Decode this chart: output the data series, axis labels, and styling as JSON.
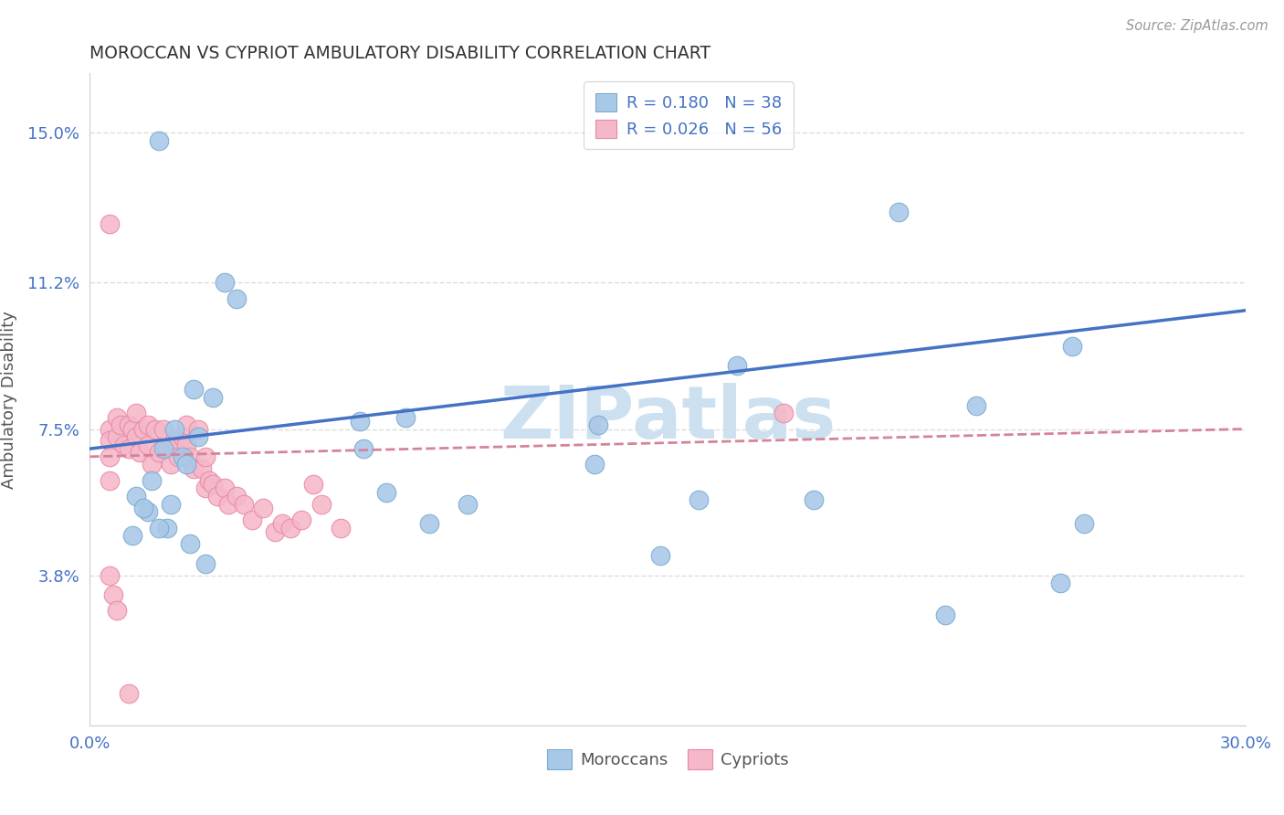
{
  "title": "MOROCCAN VS CYPRIOT AMBULATORY DISABILITY CORRELATION CHART",
  "source": "Source: ZipAtlas.com",
  "ylabel": "Ambulatory Disability",
  "xlim": [
    0.0,
    0.3
  ],
  "ylim": [
    0.0,
    0.165
  ],
  "xticks": [
    0.0,
    0.05,
    0.1,
    0.15,
    0.2,
    0.25,
    0.3
  ],
  "ytick_positions": [
    0.038,
    0.075,
    0.112,
    0.15
  ],
  "ytick_labels": [
    "3.8%",
    "7.5%",
    "11.2%",
    "15.0%"
  ],
  "moroccan_color": "#a8c8e8",
  "moroccan_edge": "#7aaacf",
  "cypriot_color": "#f5b8c8",
  "cypriot_edge": "#e888a8",
  "moroccan_line_color": "#4472c4",
  "cypriot_line_color": "#d4849a",
  "legend_text_color": "#4472c4",
  "legend_N_color": "#e05050",
  "watermark_color": "#cce0f0",
  "background_color": "#ffffff",
  "grid_color": "#dddddd",
  "moroccan_R": "0.180",
  "moroccan_N": "38",
  "cypriot_R": "0.026",
  "cypriot_N": "56",
  "moroccan_x": [
    0.018,
    0.21,
    0.035,
    0.038,
    0.027,
    0.032,
    0.022,
    0.028,
    0.019,
    0.024,
    0.016,
    0.021,
    0.012,
    0.015,
    0.02,
    0.025,
    0.014,
    0.018,
    0.011,
    0.026,
    0.03,
    0.07,
    0.082,
    0.071,
    0.077,
    0.098,
    0.088,
    0.132,
    0.131,
    0.168,
    0.158,
    0.188,
    0.258,
    0.252,
    0.222,
    0.23,
    0.255,
    0.148
  ],
  "moroccan_y": [
    0.148,
    0.13,
    0.112,
    0.108,
    0.085,
    0.083,
    0.075,
    0.073,
    0.07,
    0.068,
    0.062,
    0.056,
    0.058,
    0.054,
    0.05,
    0.066,
    0.055,
    0.05,
    0.048,
    0.046,
    0.041,
    0.077,
    0.078,
    0.07,
    0.059,
    0.056,
    0.051,
    0.076,
    0.066,
    0.091,
    0.057,
    0.057,
    0.051,
    0.036,
    0.028,
    0.081,
    0.096,
    0.043
  ],
  "cypriot_x": [
    0.005,
    0.005,
    0.005,
    0.005,
    0.005,
    0.007,
    0.007,
    0.008,
    0.009,
    0.01,
    0.01,
    0.011,
    0.012,
    0.012,
    0.013,
    0.014,
    0.015,
    0.015,
    0.016,
    0.017,
    0.018,
    0.019,
    0.02,
    0.021,
    0.022,
    0.023,
    0.024,
    0.025,
    0.025,
    0.026,
    0.027,
    0.028,
    0.029,
    0.03,
    0.03,
    0.031,
    0.032,
    0.033,
    0.035,
    0.036,
    0.038,
    0.04,
    0.042,
    0.045,
    0.048,
    0.05,
    0.052,
    0.055,
    0.058,
    0.06,
    0.065,
    0.005,
    0.006,
    0.007,
    0.01,
    0.18
  ],
  "cypriot_y": [
    0.127,
    0.075,
    0.072,
    0.068,
    0.062,
    0.078,
    0.073,
    0.076,
    0.071,
    0.076,
    0.07,
    0.075,
    0.079,
    0.073,
    0.069,
    0.075,
    0.076,
    0.071,
    0.066,
    0.075,
    0.069,
    0.075,
    0.07,
    0.066,
    0.072,
    0.068,
    0.073,
    0.076,
    0.071,
    0.068,
    0.065,
    0.075,
    0.065,
    0.068,
    0.06,
    0.062,
    0.061,
    0.058,
    0.06,
    0.056,
    0.058,
    0.056,
    0.052,
    0.055,
    0.049,
    0.051,
    0.05,
    0.052,
    0.061,
    0.056,
    0.05,
    0.038,
    0.033,
    0.029,
    0.008,
    0.079
  ]
}
